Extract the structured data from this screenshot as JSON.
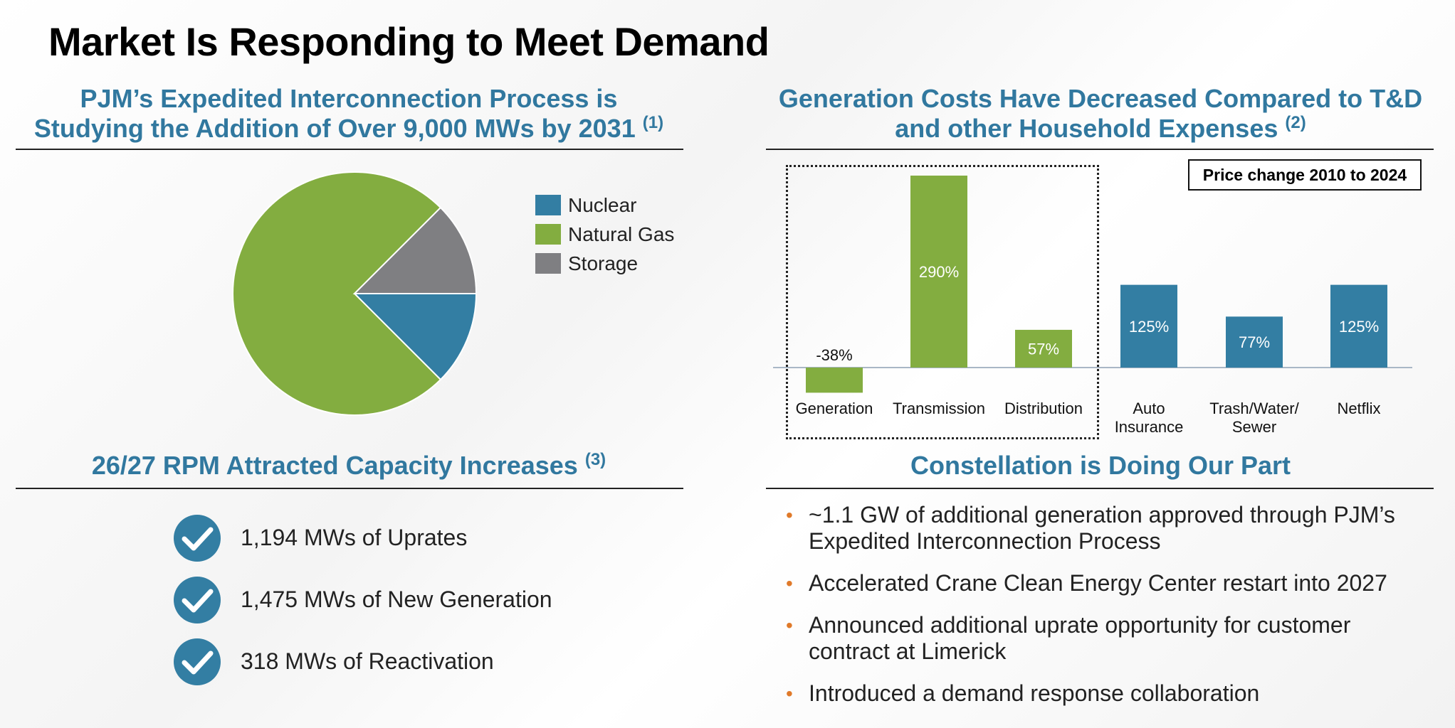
{
  "page": {
    "title": "Market Is Responding to Meet Demand"
  },
  "left_top": {
    "heading_line1": "PJM’s Expedited Interconnection Process is",
    "heading_line2": "Studying the Addition of Over 9,000 MWs by 2031",
    "heading_note": "(1)"
  },
  "right_top": {
    "heading_line1": "Generation Costs Have Decreased Compared to T&D",
    "heading_line2": "and other Household Expenses",
    "heading_note": "(2)",
    "price_box": "Price change 2010 to 2024"
  },
  "left_bottom": {
    "heading": "26/27 RPM Attracted Capacity Increases",
    "heading_note": "(3)",
    "items": [
      "1,194 MWs of Uprates",
      "1,475 MWs of New Generation",
      "318 MWs of Reactivation"
    ]
  },
  "right_bottom": {
    "heading": "Constellation is Doing Our Part",
    "bullets": [
      "~1.1 GW of additional generation approved through PJM’s Expedited Interconnection Process",
      "Accelerated Crane Clean Energy Center restart into 2027",
      "Announced additional uprate opportunity for customer contract at Limerick",
      "Introduced a demand response collaboration"
    ]
  },
  "colors": {
    "nuclear": "#337ea3",
    "natural_gas": "#83ad40",
    "storage": "#7f7f82",
    "heading_blue": "#31789f",
    "bullet_orange": "#e07a2a"
  },
  "chart_data": [
    {
      "type": "pie",
      "legend_position": "right",
      "labels": [
        "Nuclear",
        "Natural Gas",
        "Storage"
      ],
      "values": [
        12.5,
        75,
        12.5
      ],
      "colors": [
        "#337ea3",
        "#83ad40",
        "#7f7f82"
      ]
    },
    {
      "type": "bar",
      "grid": false,
      "categories": [
        "Generation",
        "Transmission",
        "Distribution",
        "Auto Insurance",
        "Trash/Water/ Sewer",
        "Netflix"
      ],
      "category_lines": [
        [
          "Generation"
        ],
        [
          "Transmission"
        ],
        [
          "Distribution"
        ],
        [
          "Auto",
          "Insurance"
        ],
        [
          "Trash/Water/",
          "Sewer"
        ],
        [
          "Netflix"
        ]
      ],
      "values": [
        -38,
        290,
        57,
        125,
        77,
        125
      ],
      "data_labels": [
        "-38%",
        "290%",
        "57%",
        "125%",
        "77%",
        "125%"
      ],
      "colors": [
        "#83ad40",
        "#83ad40",
        "#83ad40",
        "#337ea3",
        "#337ea3",
        "#337ea3"
      ],
      "ylim": [
        -40,
        290
      ]
    }
  ]
}
